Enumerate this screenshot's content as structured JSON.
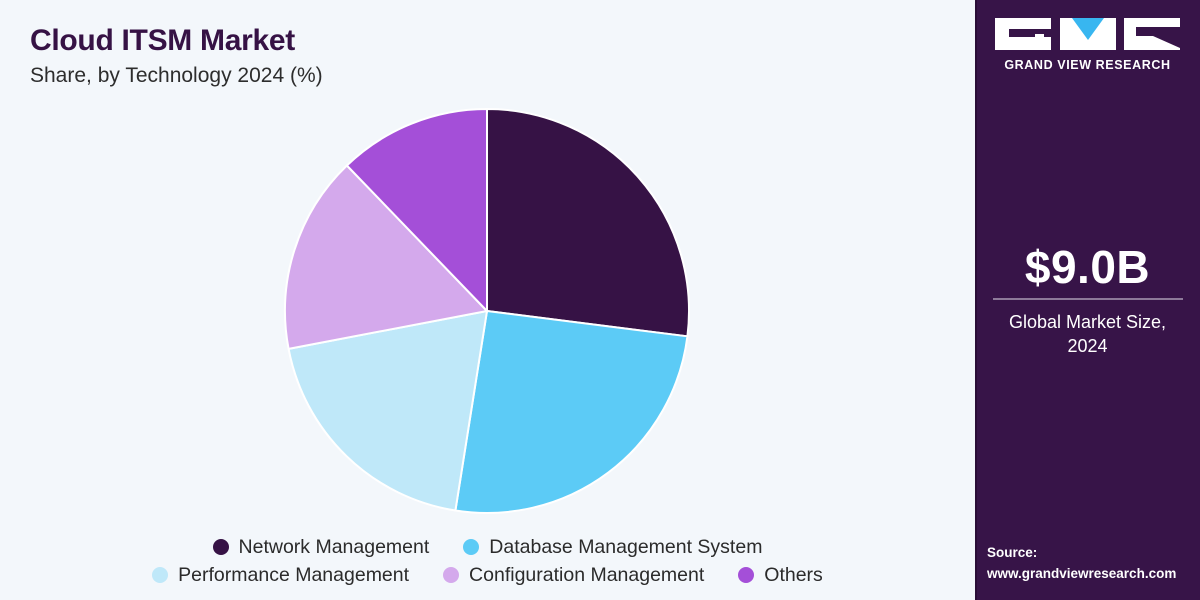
{
  "header": {
    "title": "Cloud ITSM Market",
    "subtitle": "Share, by Technology 2024 (%)"
  },
  "chart_data": {
    "type": "pie",
    "title": "Cloud ITSM Market",
    "subtitle": "Share, by Technology 2024 (%)",
    "categories": [
      "Network Management",
      "Database Management System",
      "Performance Management",
      "Configuration Management",
      "Others"
    ],
    "values": [
      27.0,
      25.5,
      19.5,
      15.8,
      12.2
    ],
    "colors": [
      "#361245",
      "#5ccbf6",
      "#bfe8f9",
      "#d4a9ec",
      "#a44fd8"
    ],
    "legend_position": "bottom"
  },
  "legend": {
    "rows": [
      [
        {
          "label": "Network Management",
          "color": "#361245"
        },
        {
          "label": "Database Management System",
          "color": "#5ccbf6"
        }
      ],
      [
        {
          "label": "Performance Management",
          "color": "#bfe8f9"
        },
        {
          "label": "Configuration Management",
          "color": "#d4a9ec"
        },
        {
          "label": "Others",
          "color": "#a44fd8"
        }
      ]
    ]
  },
  "sidebar": {
    "brand": "GRAND VIEW RESEARCH",
    "market_value": "$9.0B",
    "market_label_line1": "Global Market Size,",
    "market_label_line2": "2024",
    "source_label": "Source:",
    "source_url": "www.grandviewresearch.com"
  },
  "colors": {
    "sidebar_bg": "#371448",
    "main_bg": "#f3f7fb",
    "title": "#361245"
  }
}
